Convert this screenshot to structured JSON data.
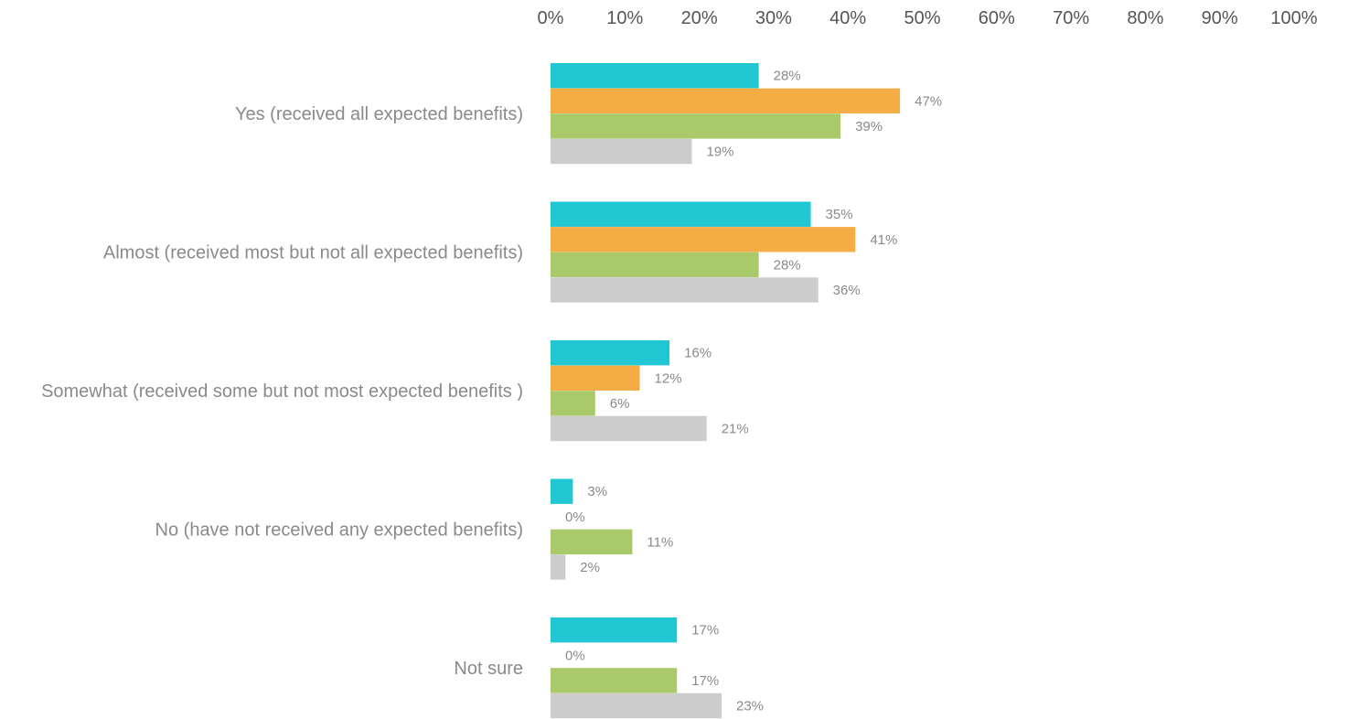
{
  "chart_data": {
    "type": "bar",
    "orientation": "horizontal",
    "title": "",
    "xlabel": "",
    "ylabel": "",
    "xlim": [
      0,
      100
    ],
    "x_ticks": [
      "0%",
      "10%",
      "20%",
      "30%",
      "40%",
      "50%",
      "60%",
      "70%",
      "80%",
      "90%",
      "100%"
    ],
    "x_axis_position": "top",
    "grid": false,
    "legend": "none",
    "categories": [
      "Yes (received all expected benefits)",
      "Almost (received most but not all expected benefits)",
      "Somewhat (received some but not most expected benefits )",
      "No (have not received any expected benefits)",
      "Not sure"
    ],
    "series": [
      {
        "color": "#22c7d4",
        "values": [
          28,
          35,
          16,
          3,
          17
        ],
        "labels": [
          "28%",
          "35%",
          "16%",
          "3%",
          "17%"
        ]
      },
      {
        "color": "#f4ad45",
        "values": [
          47,
          41,
          12,
          0,
          0
        ],
        "labels": [
          "47%",
          "41%",
          "12%",
          "0%",
          "0%"
        ]
      },
      {
        "color": "#aac96a",
        "values": [
          39,
          28,
          6,
          11,
          17
        ],
        "labels": [
          "39%",
          "28%",
          "6%",
          "11%",
          "17%"
        ]
      },
      {
        "color": "#cccccc",
        "values": [
          19,
          36,
          21,
          2,
          23
        ],
        "labels": [
          "19%",
          "36%",
          "21%",
          "2%",
          "23%"
        ]
      }
    ]
  }
}
